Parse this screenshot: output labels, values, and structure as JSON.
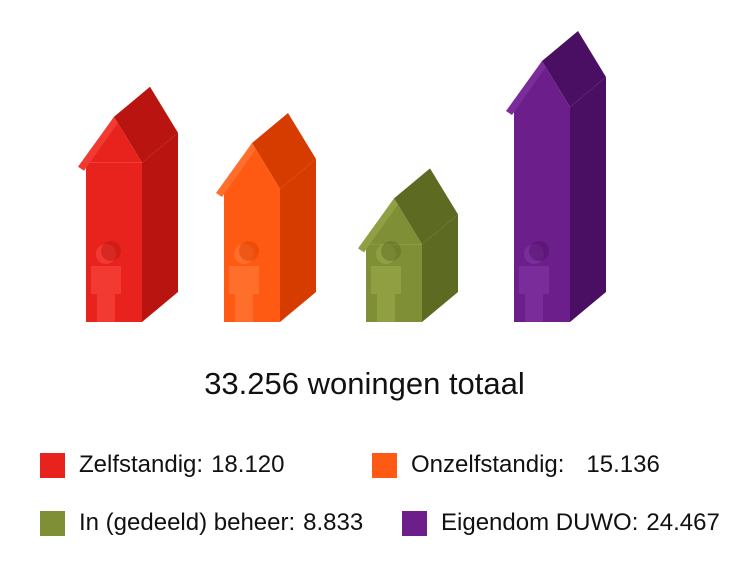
{
  "chart_data": {
    "type": "bar",
    "title": "",
    "total_label": "33.256 woningen totaal",
    "categories": [
      "Zelfstandig",
      "Onzelfstandig",
      "In (gedeeld) beheer",
      "Eigendom DUWO"
    ],
    "series": [
      {
        "values": [
          18120,
          15136,
          8833,
          24467
        ]
      }
    ],
    "legend": [
      {
        "label": "Zelfstandig:",
        "value": "18.120",
        "color": "#e8231e"
      },
      {
        "label": "Onzelfstandig:",
        "value": "15.136",
        "color": "#ff5a14"
      },
      {
        "label": "In (gedeeld) beheer:",
        "value": "8.833",
        "color": "#7f8f36"
      },
      {
        "label": "Eigendom DUWO:",
        "value": "24.467",
        "color": "#6c1e8a"
      }
    ],
    "legend_placement": "bottom",
    "colors": {
      "zelfstandig": {
        "front": "#e8231e",
        "side": "#b9140f",
        "roof": "#f23a33"
      },
      "onzelfstandig": {
        "front": "#ff5a14",
        "side": "#d63c00",
        "roof": "#ff6e2a"
      },
      "beheer": {
        "front": "#7f8f36",
        "side": "#5d6b22",
        "roof": "#8f9f42"
      },
      "eigendom": {
        "front": "#6c1e8a",
        "side": "#4a0f63",
        "roof": "#7a2d9a"
      }
    },
    "figure_icon": "person-icon"
  }
}
